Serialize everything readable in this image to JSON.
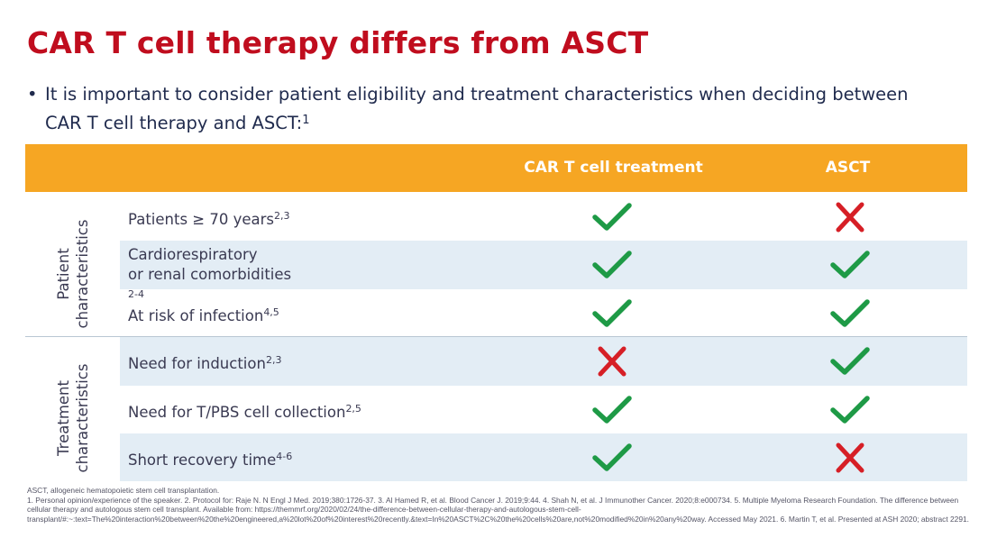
{
  "title": "CAR T cell therapy differs from ASCT",
  "bullet": {
    "text": "It is important to consider patient eligibility and treatment characteristics when deciding between CAR T cell therapy and ASCT:",
    "ref": "1"
  },
  "table": {
    "headers": [
      "",
      "CAR T cell treatment",
      "ASCT"
    ],
    "groups": [
      {
        "label_line1": "Patient",
        "label_line2": "characteristics"
      },
      {
        "label_line1": "Treatment",
        "label_line2": "characteristics"
      }
    ],
    "rows": [
      {
        "label": "Patients ≥ 70 years",
        "label2": "",
        "ref": "2,3",
        "car_t": "yes",
        "asct": "no"
      },
      {
        "label": "Cardiorespiratory",
        "label2": "or renal comorbidities",
        "ref": "2-4",
        "car_t": "yes",
        "asct": "yes"
      },
      {
        "label": "At risk of infection",
        "label2": "",
        "ref": "4,5",
        "car_t": "yes",
        "asct": "yes"
      },
      {
        "label": "Need for induction",
        "label2": "",
        "ref": "2,3",
        "car_t": "no",
        "asct": "yes"
      },
      {
        "label": "Need for T/PBS cell collection",
        "label2": "",
        "ref": "2,5",
        "car_t": "yes",
        "asct": "yes"
      },
      {
        "label": "Short recovery time",
        "label2": "",
        "ref": "4-6",
        "car_t": "yes",
        "asct": "no"
      }
    ]
  },
  "colors": {
    "title": "#c00d1e",
    "header": "#f6a623",
    "check": "#1e9a46",
    "cross": "#d61f26",
    "row_shade": "#e3edf5"
  },
  "icons": {
    "yes": "check-icon",
    "no": "cross-icon"
  },
  "footnotes": {
    "line1": "ASCT, allogeneic hematopoietic stem cell transplantation.",
    "line2": "1. Personal opinion/experience of the speaker. 2. Protocol for: Raje N. N Engl J Med. 2019;380:1726-37. 3. Al Hamed R, et al. Blood Cancer J. 2019;9:44. 4. Shah N, et al. J Immunother Cancer. 2020;8:e000734. 5. Multiple Myeloma Research Foundation. The difference between cellular therapy and autologous stem cell transplant. Available from: https://themmrf.org/2020/02/24/the-difference-between-cellular-therapy-and-autologous-stem-cell-transplant/#:~:text=The%20interaction%20between%20the%20engineered,a%20lot%20of%20interest%20recently.&text=In%20ASCT%2C%20the%20cells%20are,not%20modified%20in%20any%20way. Accessed May 2021. 6. Martin T, et al. Presented at ASH 2020; abstract 2291."
  }
}
